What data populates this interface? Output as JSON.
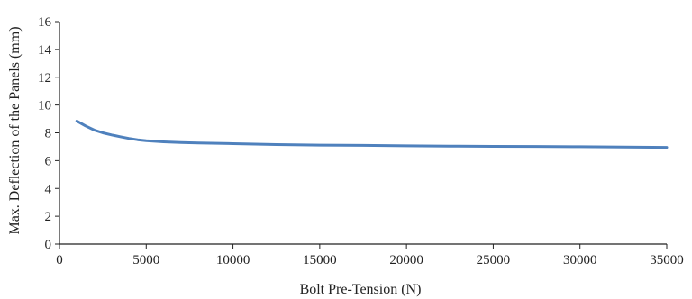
{
  "chart_data": {
    "type": "line",
    "title": "",
    "xlabel": "Bolt Pre-Tension (N)",
    "ylabel": "Max. Deflection of the Panels (mm)",
    "xlim": [
      0,
      35000
    ],
    "ylim": [
      0,
      16
    ],
    "xticks": [
      0,
      5000,
      10000,
      15000,
      20000,
      25000,
      30000,
      35000
    ],
    "yticks": [
      0,
      2,
      4,
      6,
      8,
      10,
      12,
      14,
      16
    ],
    "grid": false,
    "legend": "none",
    "series": [
      {
        "color": "#4f81bd",
        "x": [
          1000,
          1500,
          2000,
          2500,
          3000,
          3500,
          4000,
          4500,
          5000,
          6000,
          7000,
          8000,
          10000,
          12500,
          15000,
          17500,
          20000,
          22500,
          25000,
          27500,
          30000,
          32500,
          35000
        ],
        "y": [
          8.85,
          8.5,
          8.2,
          8.0,
          7.85,
          7.72,
          7.6,
          7.5,
          7.43,
          7.35,
          7.3,
          7.27,
          7.22,
          7.16,
          7.12,
          7.1,
          7.07,
          7.05,
          7.03,
          7.02,
          7.0,
          6.98,
          6.96
        ]
      }
    ]
  }
}
